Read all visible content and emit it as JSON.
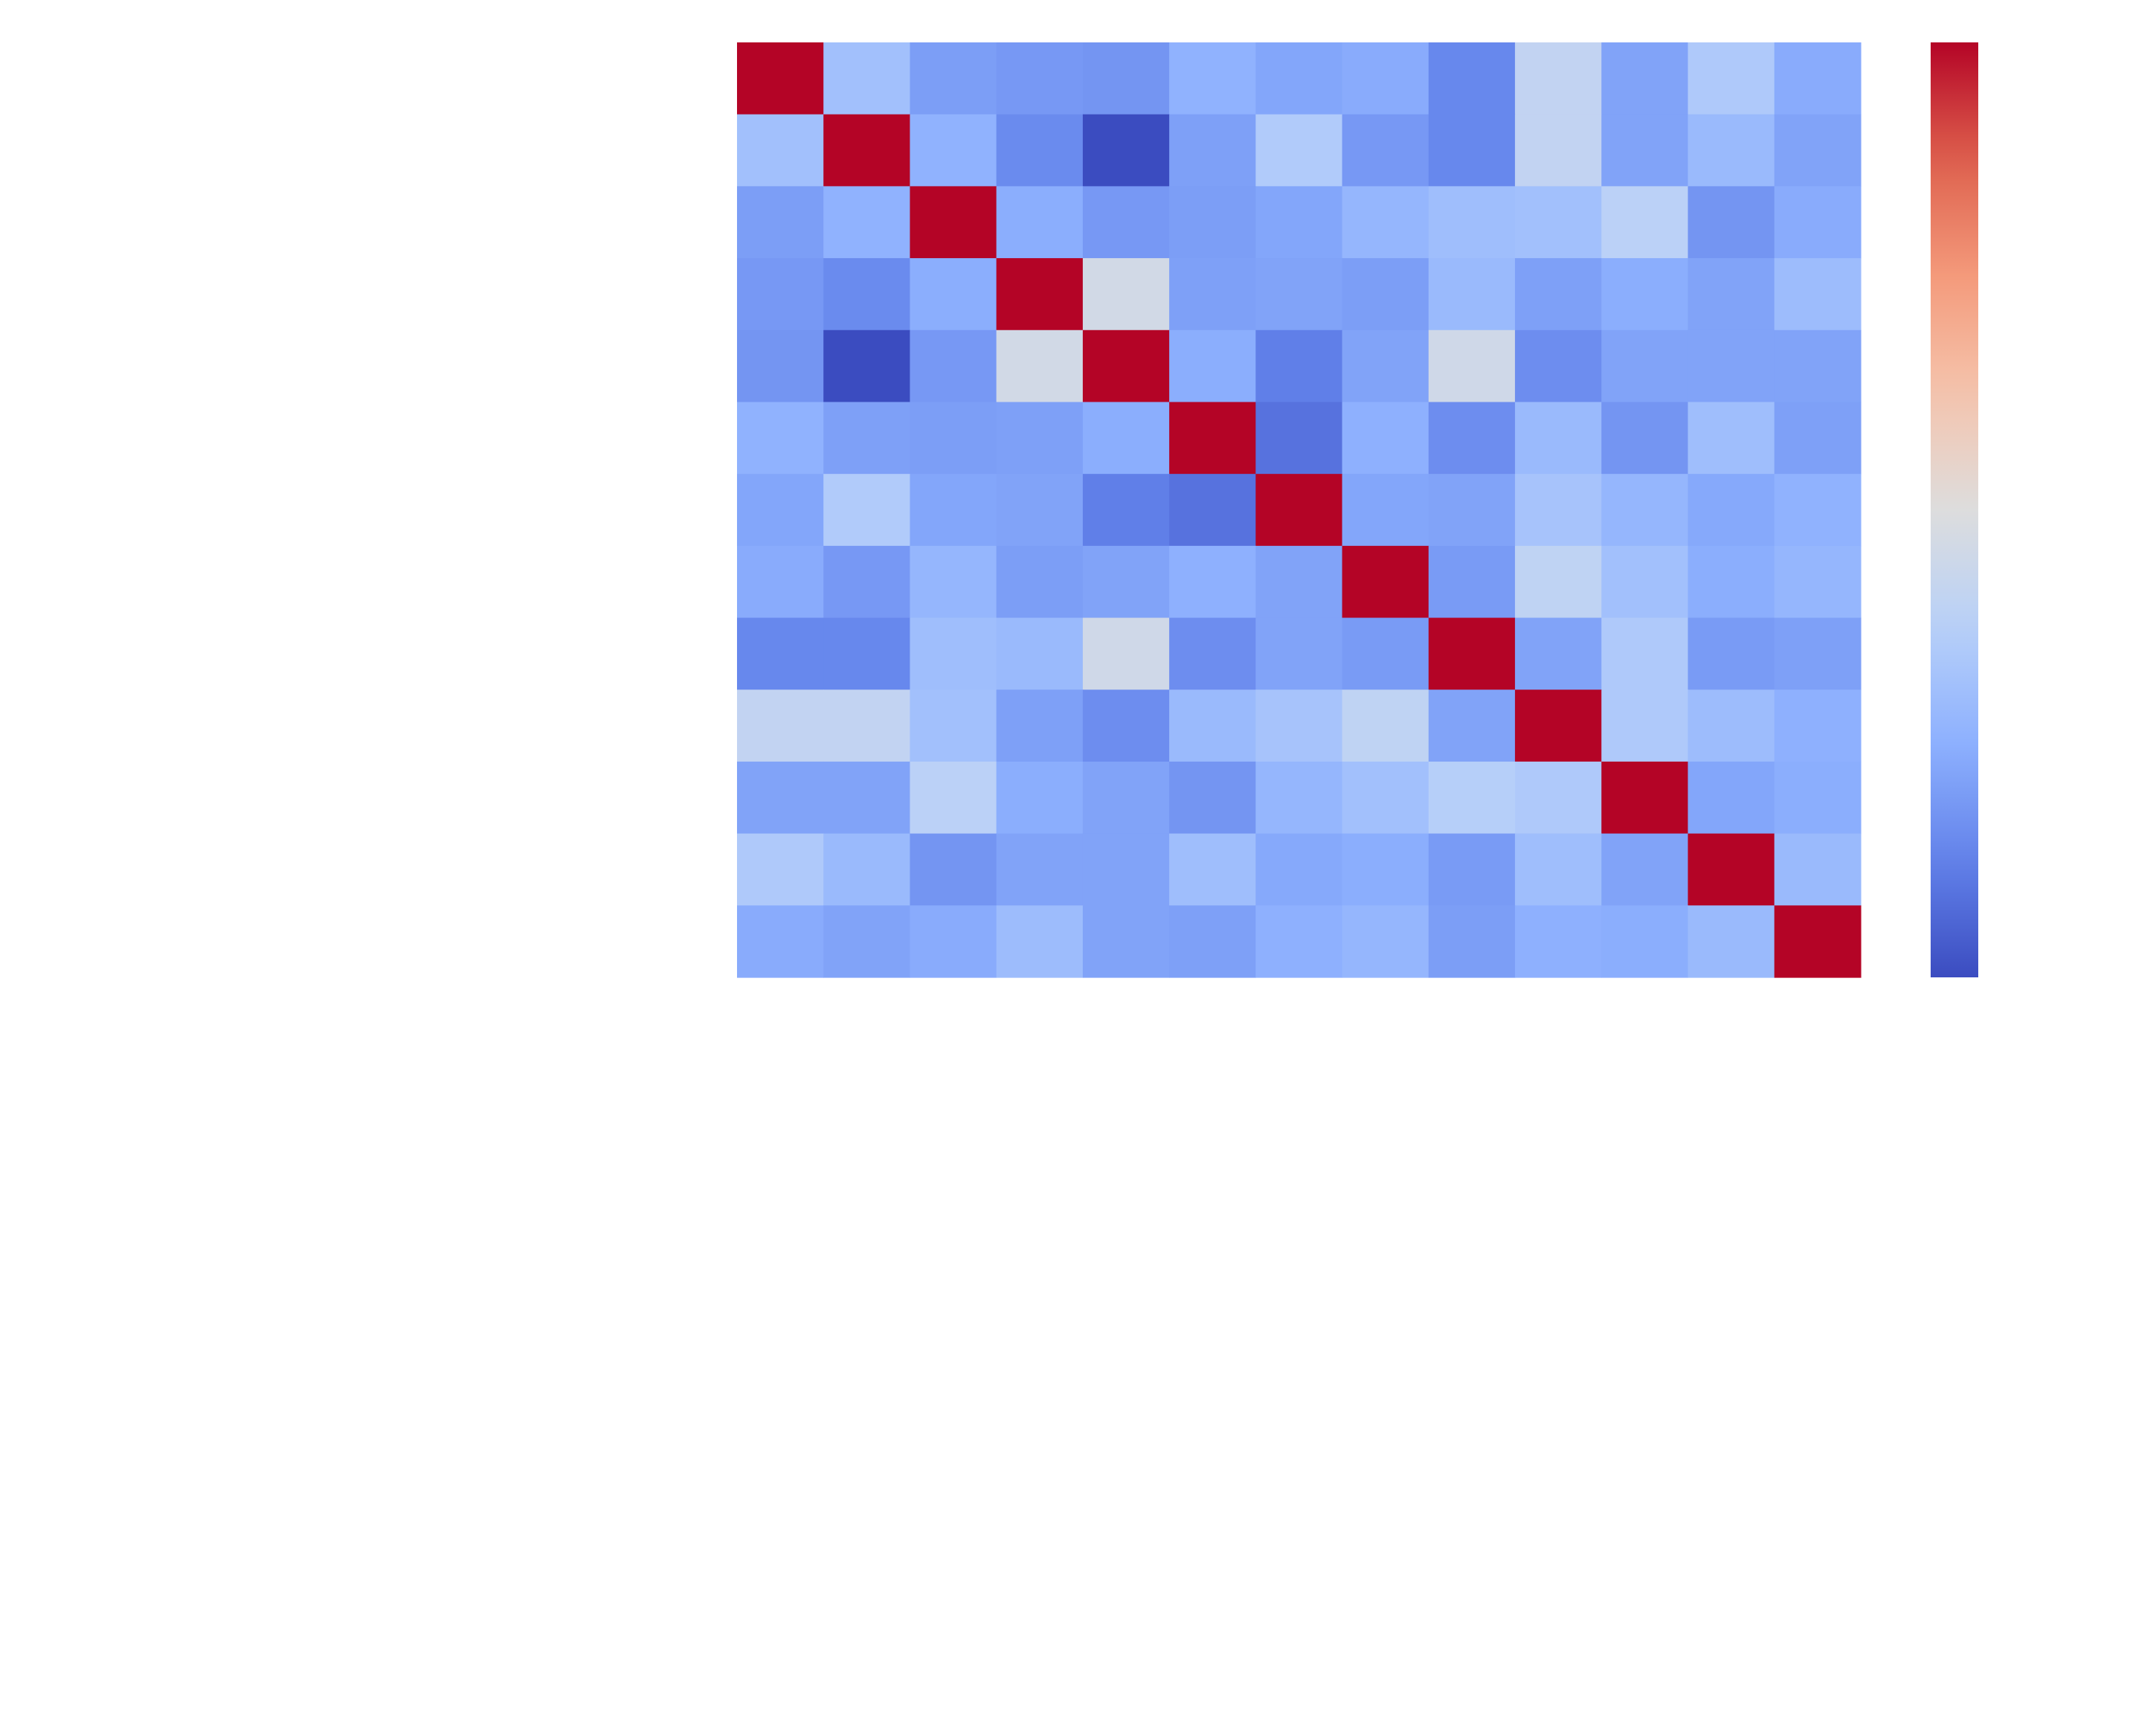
{
  "chart_data": {
    "type": "heatmap",
    "title": "",
    "xlabel": "",
    "ylabel": "",
    "x_tick_labels": [],
    "y_tick_labels": [],
    "colormap": "coolwarm",
    "colorbar": {
      "visible": true,
      "tick_labels": [],
      "range": [
        -0.35,
        1.0
      ]
    },
    "annotations": false,
    "matrix": [
      [
        1.0,
        0.07,
        -0.08,
        -0.1,
        -0.11,
        0.0,
        -0.05,
        -0.03,
        -0.16,
        0.2,
        -0.06,
        0.12,
        -0.03
      ],
      [
        0.07,
        1.0,
        0.0,
        -0.15,
        -0.35,
        -0.07,
        0.13,
        -0.1,
        -0.16,
        0.2,
        -0.06,
        0.04,
        -0.06
      ],
      [
        -0.08,
        0.0,
        1.0,
        -0.02,
        -0.1,
        -0.08,
        -0.05,
        0.02,
        0.06,
        0.07,
        0.17,
        -0.11,
        -0.03
      ],
      [
        -0.1,
        -0.15,
        -0.02,
        1.0,
        0.27,
        -0.07,
        -0.06,
        -0.08,
        0.04,
        -0.07,
        -0.02,
        -0.06,
        0.05
      ],
      [
        -0.11,
        -0.35,
        -0.1,
        0.27,
        1.0,
        -0.02,
        -0.19,
        -0.06,
        0.26,
        -0.14,
        -0.06,
        -0.06,
        -0.06
      ],
      [
        0.0,
        -0.07,
        -0.08,
        -0.07,
        -0.02,
        1.0,
        -0.23,
        -0.01,
        -0.14,
        0.04,
        -0.11,
        0.06,
        -0.07
      ],
      [
        -0.05,
        0.13,
        -0.05,
        -0.06,
        -0.19,
        -0.23,
        1.0,
        -0.05,
        -0.06,
        0.09,
        0.02,
        -0.04,
        0.0
      ],
      [
        -0.03,
        -0.1,
        0.02,
        -0.08,
        -0.06,
        -0.01,
        -0.06,
        1.0,
        -0.09,
        0.19,
        0.07,
        -0.02,
        0.02
      ],
      [
        -0.16,
        -0.16,
        0.06,
        0.04,
        0.26,
        -0.14,
        -0.06,
        -0.09,
        1.0,
        -0.06,
        0.12,
        -0.09,
        -0.07
      ],
      [
        0.2,
        0.2,
        0.07,
        -0.07,
        -0.14,
        0.04,
        0.09,
        0.19,
        -0.06,
        1.0,
        0.12,
        0.05,
        -0.01
      ],
      [
        -0.06,
        -0.06,
        0.17,
        -0.02,
        -0.06,
        -0.11,
        0.02,
        0.07,
        0.15,
        0.12,
        1.0,
        -0.05,
        -0.02
      ],
      [
        0.12,
        0.04,
        -0.11,
        -0.06,
        -0.06,
        0.06,
        -0.04,
        -0.02,
        -0.09,
        0.06,
        -0.06,
        1.0,
        0.04
      ],
      [
        -0.03,
        -0.06,
        -0.03,
        0.05,
        -0.06,
        -0.07,
        -0.01,
        0.02,
        -0.08,
        -0.01,
        -0.02,
        0.04,
        1.0
      ]
    ]
  }
}
